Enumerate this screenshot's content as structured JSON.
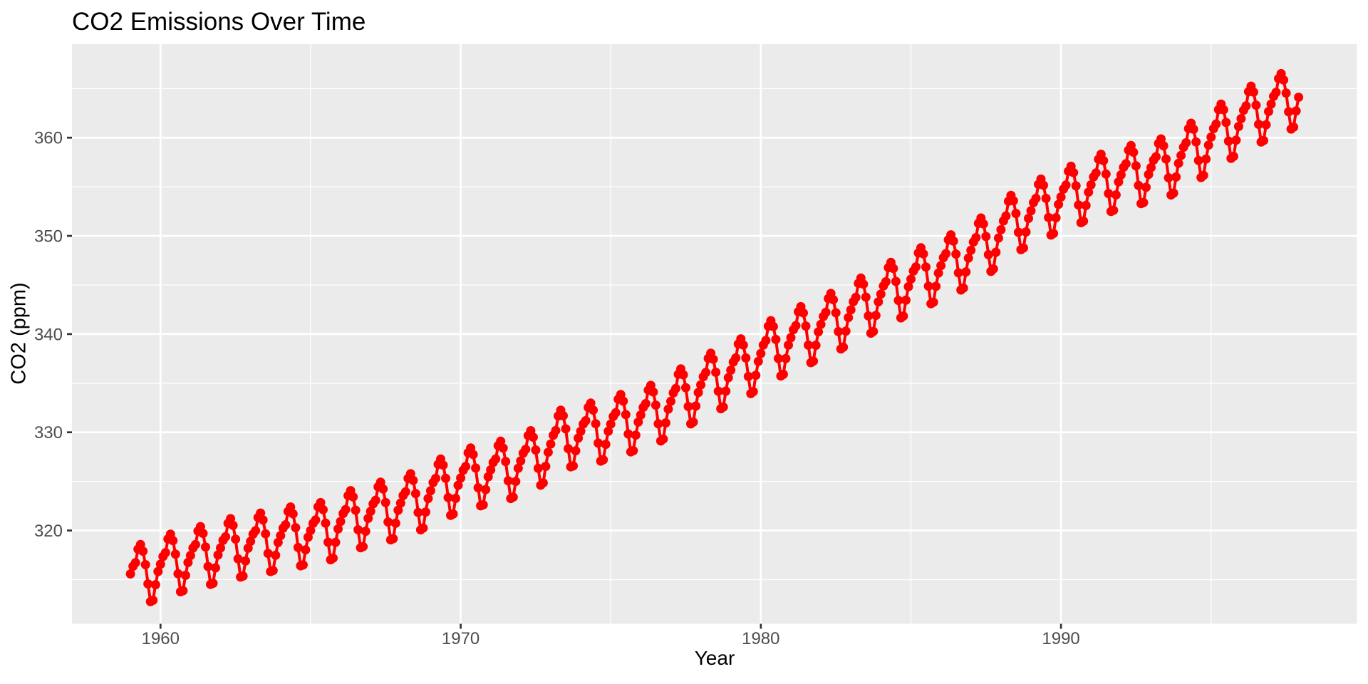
{
  "chart": {
    "title": "CO2 Emissions Over Time",
    "xlabel": "Year",
    "ylabel": "CO2 (ppm)"
  },
  "chart_data": {
    "type": "line",
    "title": "CO2 Emissions Over Time",
    "xlabel": "Year",
    "ylabel": "CO2 (ppm)",
    "series_description": "Atmospheric CO2 concentration (Mauna Loa), monthly observations Jan 1959 - Dec 1997, 468 points drawn as red filled points connected by a red line (ggplot2-style chart, no legend)",
    "x_start_year": 1959,
    "x_end_year": 1997,
    "points_per_year": 12,
    "monthly_construction": "value(year,month) = linear interpolation of annual_means anchored at mid-year + seasonal_anomalies[month]",
    "annual_means": [
      315.83,
      316.91,
      317.64,
      318.45,
      318.99,
      319.62,
      320.04,
      321.38,
      322.16,
      323.04,
      324.62,
      325.68,
      326.32,
      327.45,
      329.68,
      330.18,
      331.11,
      332.04,
      333.83,
      335.4,
      336.84,
      338.75,
      340.11,
      341.45,
      343.05,
      344.65,
      346.12,
      347.42,
      349.19,
      351.57,
      353.12,
      354.39,
      355.61,
      356.45,
      357.1,
      358.83,
      360.82,
      362.61,
      363.82
    ],
    "annual_mean_1958": 314.96,
    "annual_mean_1998": 365.55,
    "seasonal_anomalies": [
      0.15,
      0.85,
      1.15,
      2.45,
      2.85,
      2.1,
      0.65,
      -1.4,
      -3.3,
      -3.25,
      -1.75,
      -0.5
    ],
    "data_min": 313.18,
    "data_max": 366.84,
    "first_value": 315.42,
    "last_value": 364.34,
    "xticks": [
      1960,
      1970,
      1980,
      1990
    ],
    "xticks_minor": [
      1965,
      1975,
      1985,
      1995
    ],
    "yticks": [
      320,
      330,
      340,
      350,
      360
    ],
    "yticks_minor": [
      315,
      325,
      335,
      345,
      355,
      365
    ],
    "xlim": [
      1957.05,
      1999.86
    ],
    "ylim": [
      310.5,
      369.52
    ],
    "grid": "white major and minor gridlines on gray panel",
    "legend_position": "none",
    "colors": {
      "point": "#FF0000",
      "line": "#FF0000",
      "panel_background": "#EBEBEB",
      "gridline": "#FFFFFF",
      "tick_label": "#4D4D4D",
      "tick_mark": "#333333",
      "title_text": "#000000",
      "outer_background": "#FFFFFF"
    }
  }
}
